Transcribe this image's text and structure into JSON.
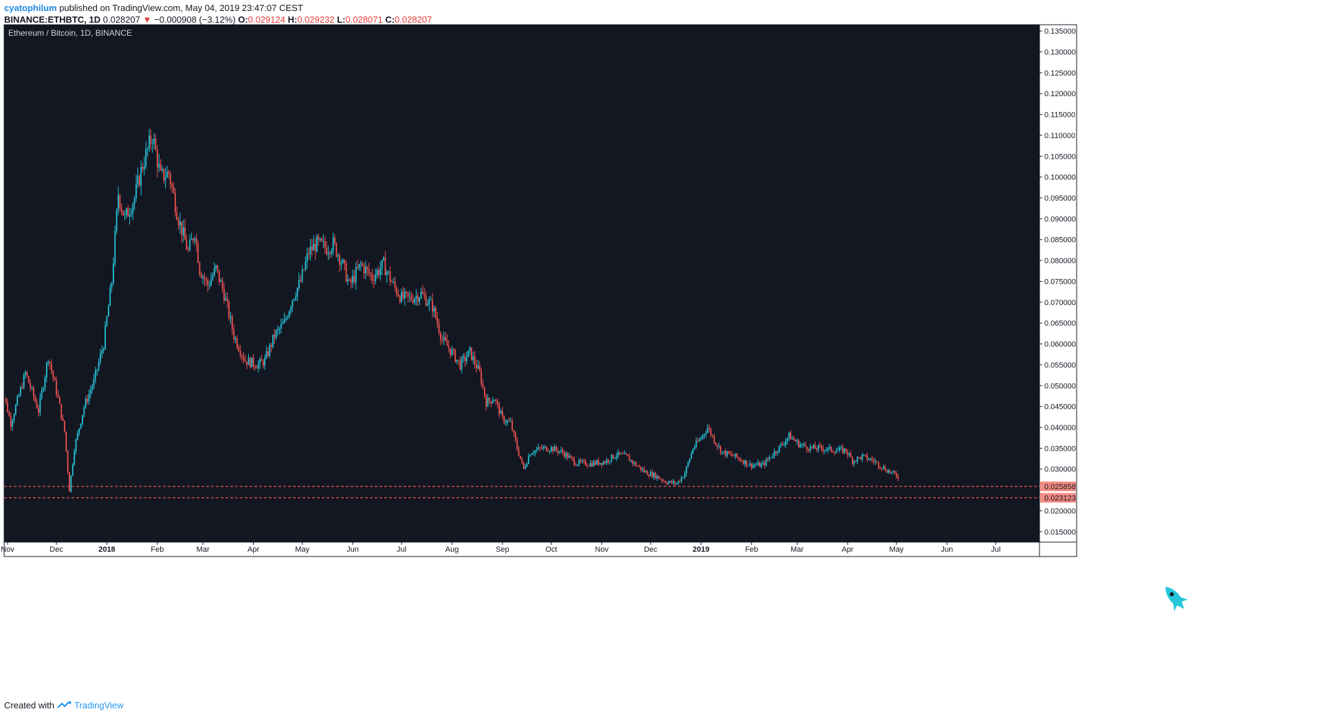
{
  "header": {
    "user": "cyatophilum",
    "published": "published on TradingView.com, May 04, 2019 23:47:07 CEST",
    "symbol": "BINANCE:ETHBTC, 1D",
    "last": "0.028207",
    "arrow": "▼",
    "change": "−0.000908 (−3.12%)",
    "o_label": "O:",
    "o_value": "0.029124",
    "h_label": "H:",
    "h_value": "0.029232",
    "l_label": "L:",
    "l_value": "0.028071",
    "c_label": "C:",
    "c_value": "0.028207"
  },
  "footer": {
    "created_with": "Created with",
    "brand": "TradingView"
  },
  "colors": {
    "background": "#131722",
    "up": "#26c6da",
    "down": "#ef5350",
    "axis_text": "#131722",
    "label_bg": "#f28b82",
    "accent": "#1e88e5"
  },
  "chart_data": {
    "type": "candlestick",
    "title": "Ethereum / Bitcoin, 1D, BINANCE",
    "x_ticks": [
      "Nov",
      "Dec",
      "2018",
      "Feb",
      "Mar",
      "Apr",
      "May",
      "Jun",
      "Jul",
      "Aug",
      "Sep",
      "Oct",
      "Nov",
      "Dec",
      "2019",
      "Feb",
      "Mar",
      "Apr",
      "May",
      "Jun",
      "Jul"
    ],
    "y_ticks": [
      "0.135000",
      "0.130000",
      "0.125000",
      "0.120000",
      "0.115000",
      "0.110000",
      "0.105000",
      "0.100000",
      "0.095000",
      "0.090000",
      "0.085000",
      "0.080000",
      "0.075000",
      "0.070000",
      "0.065000",
      "0.060000",
      "0.055000",
      "0.050000",
      "0.045000",
      "0.040000",
      "0.035000",
      "0.030000",
      "0.020000",
      "0.015000"
    ],
    "ylim": [
      0.0125,
      0.1365
    ],
    "xlim_days": [
      0,
      261
    ],
    "series": [
      {
        "values": [
          [
            0,
            0.052
          ],
          [
            10,
            0.041
          ],
          [
            20,
            0.053
          ],
          [
            30,
            0.044
          ],
          [
            40,
            0.056
          ],
          [
            50,
            0.046
          ],
          [
            58,
            0.052
          ],
          [
            70,
            0.047
          ],
          [
            78,
            0.04
          ],
          [
            82,
            0.03
          ],
          [
            85,
            0.028
          ],
          [
            90,
            0.036
          ],
          [
            100,
            0.042
          ],
          [
            110,
            0.05
          ],
          [
            120,
            0.056
          ],
          [
            130,
            0.065
          ],
          [
            136,
            0.076
          ],
          [
            144,
            0.085
          ],
          [
            150,
            0.096
          ],
          [
            158,
            0.091
          ],
          [
            166,
            0.096
          ],
          [
            176,
            0.103
          ],
          [
            182,
            0.111
          ],
          [
            187,
            0.106
          ],
          [
            193,
            0.099
          ],
          [
            200,
            0.101
          ],
          [
            206,
            0.096
          ],
          [
            214,
            0.087
          ],
          [
            220,
            0.082
          ],
          [
            228,
            0.077
          ],
          [
            236,
            0.079
          ],
          [
            244,
            0.071
          ],
          [
            252,
            0.064
          ],
          [
            258,
            0.061
          ]
        ]
      }
    ],
    "close_points": [
      [
        "2017-10-27",
        0.052
      ],
      [
        "2017-11-03",
        0.041
      ],
      [
        "2017-11-12",
        0.053
      ],
      [
        "2017-11-20",
        0.044
      ],
      [
        "2017-11-26",
        0.057
      ],
      [
        "2017-12-02",
        0.047
      ],
      [
        "2017-12-06",
        0.039
      ],
      [
        "2017-12-09",
        0.025
      ],
      [
        "2017-12-12",
        0.035
      ],
      [
        "2017-12-18",
        0.045
      ],
      [
        "2017-12-24",
        0.051
      ],
      [
        "2017-12-30",
        0.06
      ],
      [
        "2018-01-04",
        0.075
      ],
      [
        "2018-01-08",
        0.096
      ],
      [
        "2018-01-12",
        0.09
      ],
      [
        "2018-01-18",
        0.095
      ],
      [
        "2018-01-23",
        0.103
      ],
      [
        "2018-01-29",
        0.11
      ],
      [
        "2018-02-03",
        0.1
      ],
      [
        "2018-02-08",
        0.101
      ],
      [
        "2018-02-14",
        0.09
      ],
      [
        "2018-02-20",
        0.082
      ],
      [
        "2018-02-24",
        0.087
      ],
      [
        "2018-02-27",
        0.078
      ],
      [
        "2018-03-04",
        0.074
      ],
      [
        "2018-03-09",
        0.078
      ],
      [
        "2018-03-14",
        0.072
      ],
      [
        "2018-03-20",
        0.062
      ],
      [
        "2018-03-27",
        0.056
      ],
      [
        "2018-04-04",
        0.055
      ],
      [
        "2018-04-08",
        0.056
      ],
      [
        "2018-04-14",
        0.062
      ],
      [
        "2018-04-20",
        0.065
      ],
      [
        "2018-04-25",
        0.071
      ],
      [
        "2018-04-30",
        0.075
      ],
      [
        "2018-05-05",
        0.082
      ],
      [
        "2018-05-10",
        0.084
      ],
      [
        "2018-05-16",
        0.083
      ],
      [
        "2018-05-20",
        0.084
      ],
      [
        "2018-05-25",
        0.08
      ],
      [
        "2018-05-30",
        0.074
      ],
      [
        "2018-06-06",
        0.079
      ],
      [
        "2018-06-13",
        0.076
      ],
      [
        "2018-06-20",
        0.079
      ],
      [
        "2018-06-26",
        0.074
      ],
      [
        "2018-07-01",
        0.071
      ],
      [
        "2018-07-07",
        0.071
      ],
      [
        "2018-07-13",
        0.072
      ],
      [
        "2018-07-20",
        0.069
      ],
      [
        "2018-07-26",
        0.061
      ],
      [
        "2018-08-01",
        0.058
      ],
      [
        "2018-08-06",
        0.055
      ],
      [
        "2018-08-12",
        0.058
      ],
      [
        "2018-08-18",
        0.053
      ],
      [
        "2018-08-22",
        0.046
      ],
      [
        "2018-08-27",
        0.047
      ],
      [
        "2018-09-01",
        0.042
      ],
      [
        "2018-09-06",
        0.041
      ],
      [
        "2018-09-10",
        0.035
      ],
      [
        "2018-09-14",
        0.03
      ],
      [
        "2018-09-18",
        0.034
      ],
      [
        "2018-09-25",
        0.035
      ],
      [
        "2018-10-01",
        0.035
      ],
      [
        "2018-10-08",
        0.034
      ],
      [
        "2018-10-16",
        0.0315
      ],
      [
        "2018-10-25",
        0.0313
      ],
      [
        "2018-11-03",
        0.0318
      ],
      [
        "2018-11-10",
        0.0335
      ],
      [
        "2018-11-16",
        0.033
      ],
      [
        "2018-11-22",
        0.031
      ],
      [
        "2018-11-28",
        0.0292
      ],
      [
        "2018-12-04",
        0.0284
      ],
      [
        "2018-12-10",
        0.027
      ],
      [
        "2018-12-17",
        0.0265
      ],
      [
        "2018-12-22",
        0.029
      ],
      [
        "2018-12-27",
        0.035
      ],
      [
        "2019-01-01",
        0.0375
      ],
      [
        "2019-01-05",
        0.04
      ],
      [
        "2019-01-09",
        0.037
      ],
      [
        "2019-01-14",
        0.034
      ],
      [
        "2019-01-22",
        0.033
      ],
      [
        "2019-01-31",
        0.031
      ],
      [
        "2019-02-08",
        0.031
      ],
      [
        "2019-02-15",
        0.034
      ],
      [
        "2019-02-20",
        0.036
      ],
      [
        "2019-02-24",
        0.038
      ],
      [
        "2019-03-02",
        0.036
      ],
      [
        "2019-03-09",
        0.035
      ],
      [
        "2019-03-16",
        0.035
      ],
      [
        "2019-03-24",
        0.0345
      ],
      [
        "2019-03-31",
        0.0345
      ],
      [
        "2019-04-04",
        0.032
      ],
      [
        "2019-04-10",
        0.033
      ],
      [
        "2019-04-17",
        0.032
      ],
      [
        "2019-04-24",
        0.03
      ],
      [
        "2019-05-02",
        0.0282
      ]
    ],
    "horizontal_lines": [
      {
        "value": 0.025858,
        "label": "0.025858"
      },
      {
        "value": 0.023123,
        "label": "0.023123"
      }
    ],
    "grid": false,
    "legend": "top-left"
  }
}
